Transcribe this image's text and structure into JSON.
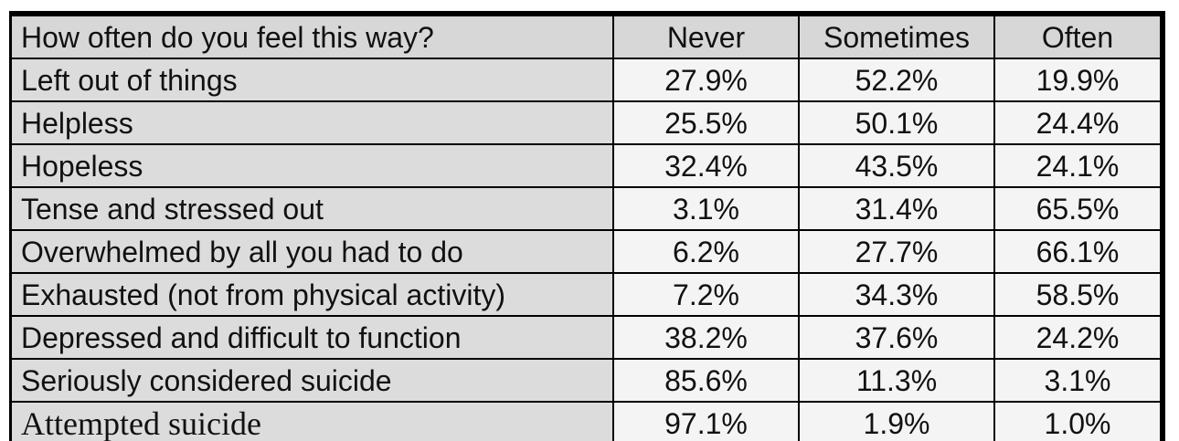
{
  "table": {
    "header": {
      "question": "How often do you feel this way?",
      "columns": [
        "Never",
        "Sometimes",
        "Often"
      ]
    },
    "rows": [
      {
        "label": "Left out of things",
        "values": [
          "27.9%",
          "52.2%",
          "19.9%"
        ]
      },
      {
        "label": "Helpless",
        "values": [
          "25.5%",
          "50.1%",
          "24.4%"
        ]
      },
      {
        "label": "Hopeless",
        "values": [
          "32.4%",
          "43.5%",
          "24.1%"
        ]
      },
      {
        "label": "Tense and stressed out",
        "values": [
          "3.1%",
          "31.4%",
          "65.5%"
        ]
      },
      {
        "label": "Overwhelmed by all you had to do",
        "values": [
          "6.2%",
          "27.7%",
          "66.1%"
        ]
      },
      {
        "label": "Exhausted (not from physical activity)",
        "values": [
          "7.2%",
          "34.3%",
          "58.5%"
        ]
      },
      {
        "label": "Depressed and difficult to function",
        "values": [
          "38.2%",
          "37.6%",
          "24.2%"
        ]
      },
      {
        "label": "Seriously considered suicide",
        "values": [
          "85.6%",
          "11.3%",
          "3.1%"
        ]
      },
      {
        "label": "Attempted suicide",
        "values": [
          "97.1%",
          "1.9%",
          "1.0%"
        ]
      }
    ]
  }
}
